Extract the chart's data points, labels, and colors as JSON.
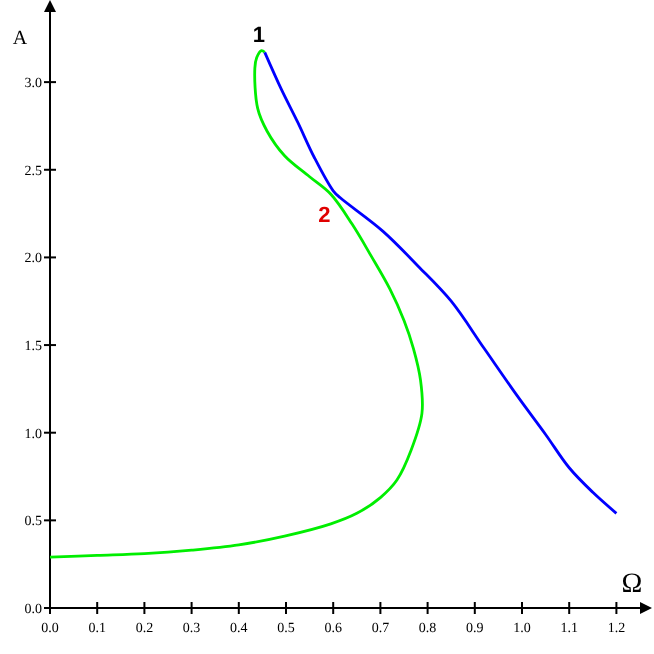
{
  "chart_data": {
    "type": "line",
    "xlabel": "Ω",
    "ylabel": "A",
    "xlim": [
      0,
      1.25
    ],
    "ylim": [
      0,
      3.4
    ],
    "xticks": [
      {
        "value": 0,
        "label": "0.0"
      },
      0.1,
      0.2,
      0.3,
      0.4,
      0.5,
      0.6,
      0.7,
      0.8,
      0.9,
      {
        "value": 1,
        "label": "1.0"
      },
      1.1,
      1.2
    ],
    "yticks": [
      {
        "value": 0,
        "label": "0.0"
      },
      0.5,
      {
        "value": 1,
        "label": "1.0"
      },
      1.5,
      {
        "value": 2,
        "label": "2.0"
      },
      2.5,
      {
        "value": 3,
        "label": "3.0"
      }
    ],
    "grid": false,
    "marker": "none",
    "line_style": "solid",
    "series": [
      {
        "color": "#00ee00",
        "x": [
          0,
          0.1,
          0.2,
          0.3,
          0.4,
          0.497,
          0.595,
          0.65,
          0.7,
          0.735,
          0.765,
          0.788,
          0.785,
          0.77,
          0.75,
          0.72,
          0.68,
          0.64,
          0.595,
          0.55,
          0.497,
          0.46,
          0.44,
          0.434,
          0.438,
          0.448,
          0.455
        ],
        "values": [
          0.29,
          0.3,
          0.31,
          0.33,
          0.36,
          0.41,
          0.48,
          0.54,
          0.63,
          0.73,
          0.9,
          1.11,
          1.3,
          1.48,
          1.64,
          1.82,
          2.01,
          2.19,
          2.36,
          2.46,
          2.58,
          2.72,
          2.85,
          3.08,
          3.14,
          3.18,
          3.17
        ]
      },
      {
        "color": "#0000ff",
        "x": [
          0.455,
          0.49,
          0.525,
          0.56,
          0.6,
          0.615,
          0.705,
          0.78,
          0.85,
          0.92,
          0.99,
          1.05,
          1.1,
          1.15,
          1.2
        ],
        "values": [
          3.17,
          2.96,
          2.77,
          2.57,
          2.38,
          2.34,
          2.15,
          1.95,
          1.75,
          1.48,
          1.21,
          0.99,
          0.8,
          0.66,
          0.54
        ]
      }
    ],
    "annotations": [
      {
        "text": "1",
        "x": 0.455,
        "y": 3.17
      },
      {
        "text": "2",
        "x": 0.615,
        "y": 2.34
      }
    ]
  }
}
